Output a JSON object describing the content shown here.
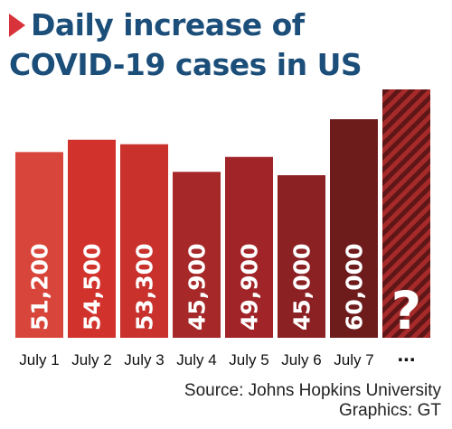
{
  "title": {
    "line1": "Daily increase of",
    "line2": "COVID-19 cases in US"
  },
  "chart_data": {
    "type": "bar",
    "title": "Daily increase of COVID-19 cases in US",
    "categories": [
      "July 1",
      "July 2",
      "July 3",
      "July 4",
      "July 5",
      "July 6",
      "July 7",
      "..."
    ],
    "values": [
      51200,
      54500,
      53300,
      45900,
      49900,
      45000,
      60000,
      null
    ],
    "value_labels": [
      "51,200",
      "54,500",
      "53,300",
      "45,900",
      "49,900",
      "45,000",
      "60,000",
      "?"
    ],
    "colors": [
      "#d8453a",
      "#d2322c",
      "#c8312c",
      "#a62828",
      "#a02428",
      "#8c2124",
      "#6e1b1c",
      "#7a1e1f"
    ],
    "last_bar_hatched": true,
    "xlabel": "",
    "ylabel": ""
  },
  "source": "Source: Johns Hopkins University",
  "credit": "Graphics: GT"
}
